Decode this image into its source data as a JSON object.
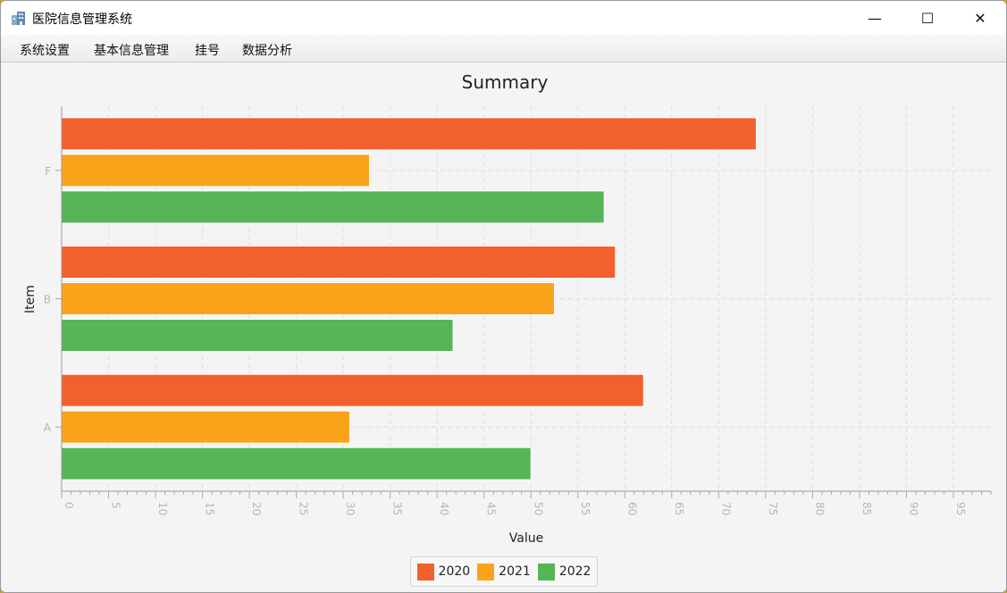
{
  "window": {
    "title": "医院信息管理系统",
    "icon": "hospital-building-icon",
    "controls": {
      "minimize": "—",
      "maximize": "☐",
      "close": "✕"
    }
  },
  "menu": {
    "items": [
      {
        "label": "系统设置"
      },
      {
        "label": "基本信息管理"
      },
      {
        "label": "挂号"
      },
      {
        "label": "数据分析"
      }
    ]
  },
  "chart_data": {
    "type": "bar",
    "orientation": "horizontal",
    "title": "Summary",
    "xlabel": "Value",
    "ylabel": "Item",
    "categories": [
      "A",
      "B",
      "F"
    ],
    "xlim": [
      0,
      99
    ],
    "xticks": [
      0,
      5,
      10,
      15,
      20,
      25,
      30,
      35,
      40,
      45,
      50,
      55,
      60,
      65,
      70,
      75,
      80,
      85,
      90,
      95
    ],
    "grid": true,
    "legend_position": "bottom",
    "series": [
      {
        "name": "2020",
        "color": "#f2602d",
        "values": [
          62,
          59,
          74
        ]
      },
      {
        "name": "2021",
        "color": "#f9a31b",
        "values": [
          30.7,
          52.5,
          32.8
        ]
      },
      {
        "name": "2022",
        "color": "#56b556",
        "values": [
          50,
          41.7,
          57.8
        ]
      }
    ]
  }
}
